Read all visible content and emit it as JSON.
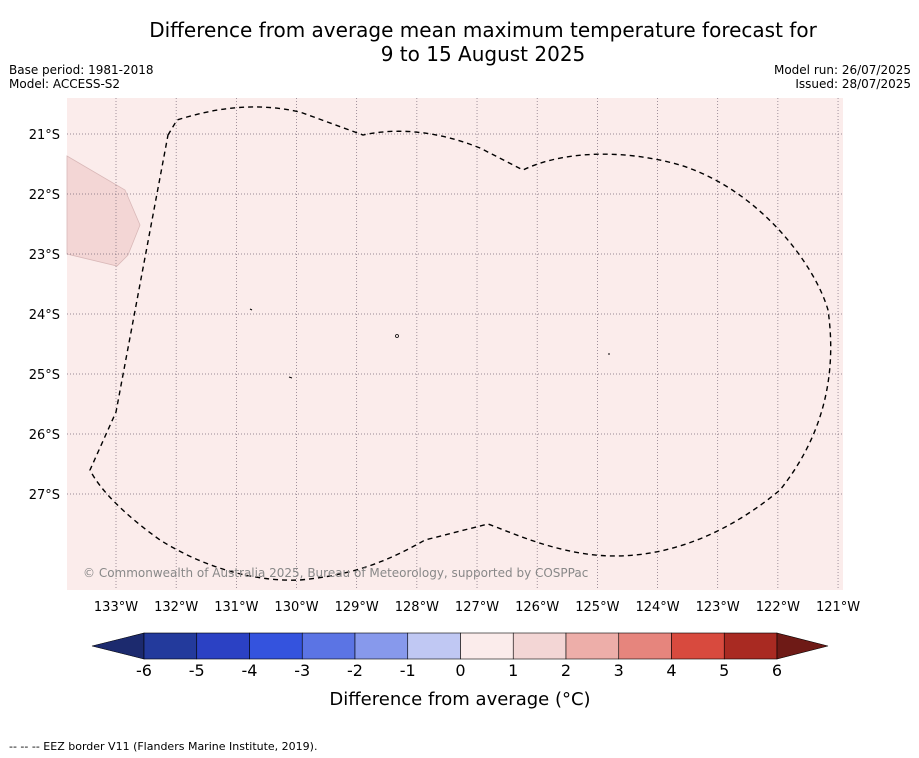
{
  "title": {
    "line1": "Difference from average mean maximum temperature forecast for",
    "line2": "9 to 15 August 2025"
  },
  "meta_left": {
    "base_period": "Base period: 1981-2018",
    "model": "Model: ACCESS-S2"
  },
  "meta_right": {
    "model_run": "Model run: 26/07/2025",
    "issued": "Issued: 28/07/2025"
  },
  "map": {
    "background_color": "#fbeceb",
    "anomaly_patch_color": "#f3d6d5",
    "lon_labels": [
      "133°W",
      "132°W",
      "131°W",
      "130°W",
      "129°W",
      "128°W",
      "127°W",
      "126°W",
      "125°W",
      "124°W",
      "123°W",
      "122°W",
      "121°W"
    ],
    "lat_labels": [
      "21°S",
      "22°S",
      "23°S",
      "24°S",
      "25°S",
      "26°S",
      "27°S"
    ],
    "copyright": "© Commonwealth of Australia 2025, Bureau of Meteorology, supported by COSPPac"
  },
  "colorbar": {
    "colors": [
      "#233a9c",
      "#2b41c4",
      "#3453de",
      "#5b74e4",
      "#8799ec",
      "#c0c8f3",
      "#e6e9f8",
      "#fbeceb",
      "#f3d6d5",
      "#edaea9",
      "#e6857d",
      "#d84a3e",
      "#a92a22"
    ],
    "under_color": "#1c2a6e",
    "over_color": "#6e1a16",
    "tick_labels": [
      "-6",
      "-5",
      "-4",
      "-3",
      "-2",
      "-1",
      "0",
      "1",
      "2",
      "3",
      "4",
      "5",
      "6"
    ],
    "label": "Difference from average (°C)"
  },
  "footer": {
    "legend_line": "-- -- -- EEZ border V11 (Flanders Marine Institute, 2019)."
  }
}
